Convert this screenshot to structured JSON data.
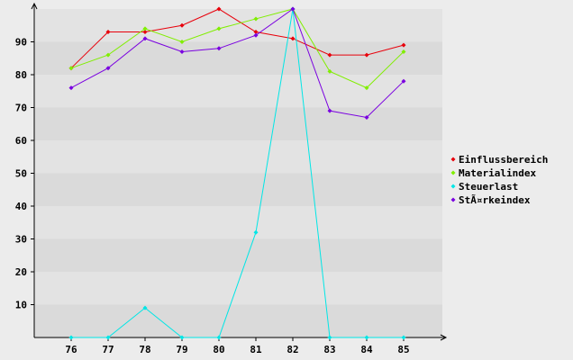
{
  "chart_data": {
    "type": "line",
    "categories": [
      "76",
      "77",
      "78",
      "79",
      "80",
      "81",
      "82",
      "83",
      "84",
      "85"
    ],
    "ylim": [
      0,
      100
    ],
    "yticks": [
      10,
      20,
      30,
      40,
      50,
      60,
      70,
      80,
      90
    ],
    "grid": "horizontal bands",
    "legend": "right",
    "series": [
      {
        "name": "Einflussbereich",
        "color": "#e8000b",
        "values": [
          82,
          93,
          93,
          95,
          100,
          93,
          91,
          86,
          86,
          89
        ]
      },
      {
        "name": "Materialindex",
        "color": "#80ee00",
        "values": [
          82,
          86,
          94,
          90,
          94,
          97,
          100,
          81,
          76,
          87
        ]
      },
      {
        "name": "Steuerlast",
        "color": "#00e6e6",
        "values": [
          0,
          0,
          9,
          0,
          0,
          32,
          100,
          0,
          0,
          0
        ]
      },
      {
        "name": "StÃ¤rkeindex",
        "color": "#7a00e0",
        "values": [
          76,
          82,
          91,
          87,
          88,
          92,
          100,
          69,
          67,
          78
        ]
      }
    ]
  }
}
